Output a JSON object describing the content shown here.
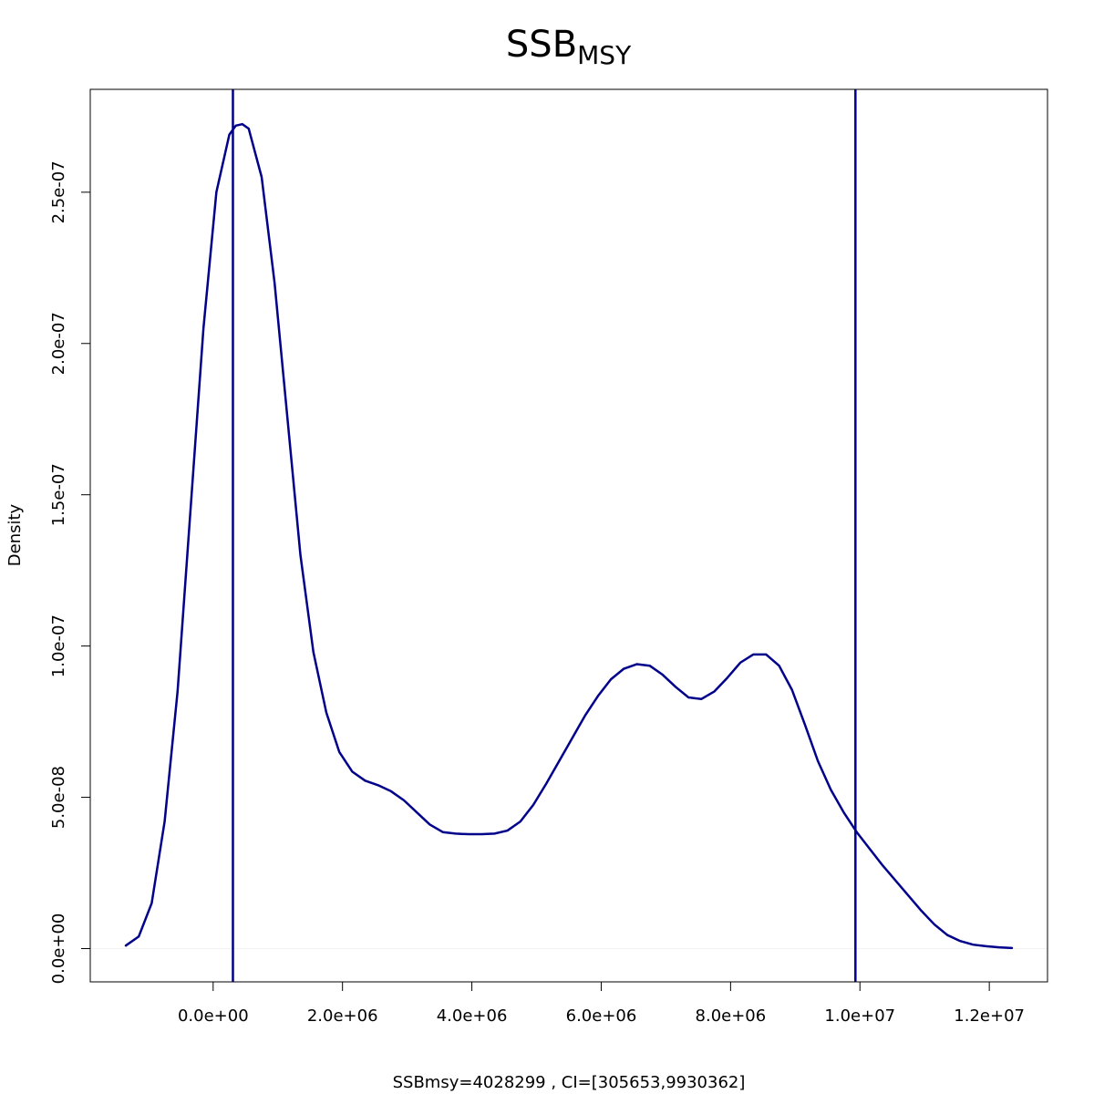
{
  "chart_data": {
    "type": "line",
    "title": "SSB",
    "title_subscript": "MSY",
    "xlabel": "SSBmsy=4028299 , CI=[305653,9930362]",
    "ylabel": "Density",
    "xlim": [
      -1900000,
      12900000
    ],
    "ylim": [
      -1.1e-08,
      2.84e-07
    ],
    "x_ticks": [
      {
        "value": 0,
        "label": "0.0e+00"
      },
      {
        "value": 2000000,
        "label": "2.0e+06"
      },
      {
        "value": 4000000,
        "label": "4.0e+06"
      },
      {
        "value": 6000000,
        "label": "6.0e+06"
      },
      {
        "value": 8000000,
        "label": "8.0e+06"
      },
      {
        "value": 10000000,
        "label": "1.0e+07"
      },
      {
        "value": 12000000,
        "label": "1.2e+07"
      }
    ],
    "y_ticks": [
      {
        "value": 0,
        "label": "0.0e+00"
      },
      {
        "value": 5e-08,
        "label": "5.0e-08"
      },
      {
        "value": 1e-07,
        "label": "1.0e-07"
      },
      {
        "value": 1.5e-07,
        "label": "1.5e-07"
      },
      {
        "value": 2e-07,
        "label": "2.0e-07"
      },
      {
        "value": 2.5e-07,
        "label": "2.5e-07"
      }
    ],
    "series": [
      {
        "name": "density",
        "color": "#00008B",
        "points": [
          [
            -1350000,
            1e-09
          ],
          [
            -1150000,
            4e-09
          ],
          [
            -950000,
            1.5e-08
          ],
          [
            -750000,
            4.2e-08
          ],
          [
            -550000,
            8.5e-08
          ],
          [
            -350000,
            1.45e-07
          ],
          [
            -150000,
            2.05e-07
          ],
          [
            50000,
            2.5e-07
          ],
          [
            250000,
            2.69e-07
          ],
          [
            350000,
            2.72e-07
          ],
          [
            450000,
            2.725e-07
          ],
          [
            550000,
            2.71e-07
          ],
          [
            750000,
            2.55e-07
          ],
          [
            950000,
            2.2e-07
          ],
          [
            1150000,
            1.75e-07
          ],
          [
            1350000,
            1.3e-07
          ],
          [
            1550000,
            9.8e-08
          ],
          [
            1750000,
            7.8e-08
          ],
          [
            1950000,
            6.5e-08
          ],
          [
            2150000,
            5.85e-08
          ],
          [
            2350000,
            5.55e-08
          ],
          [
            2550000,
            5.4e-08
          ],
          [
            2750000,
            5.2e-08
          ],
          [
            2950000,
            4.9e-08
          ],
          [
            3150000,
            4.5e-08
          ],
          [
            3350000,
            4.1e-08
          ],
          [
            3550000,
            3.85e-08
          ],
          [
            3750000,
            3.8e-08
          ],
          [
            3950000,
            3.78e-08
          ],
          [
            4150000,
            3.78e-08
          ],
          [
            4350000,
            3.8e-08
          ],
          [
            4550000,
            3.9e-08
          ],
          [
            4750000,
            4.2e-08
          ],
          [
            4950000,
            4.75e-08
          ],
          [
            5150000,
            5.45e-08
          ],
          [
            5350000,
            6.2e-08
          ],
          [
            5550000,
            6.95e-08
          ],
          [
            5750000,
            7.7e-08
          ],
          [
            5950000,
            8.35e-08
          ],
          [
            6150000,
            8.9e-08
          ],
          [
            6350000,
            9.25e-08
          ],
          [
            6550000,
            9.4e-08
          ],
          [
            6750000,
            9.35e-08
          ],
          [
            6950000,
            9.05e-08
          ],
          [
            7150000,
            8.65e-08
          ],
          [
            7350000,
            8.3e-08
          ],
          [
            7550000,
            8.25e-08
          ],
          [
            7750000,
            8.5e-08
          ],
          [
            7950000,
            8.95e-08
          ],
          [
            8150000,
            9.45e-08
          ],
          [
            8350000,
            9.72e-08
          ],
          [
            8550000,
            9.72e-08
          ],
          [
            8750000,
            9.35e-08
          ],
          [
            8950000,
            8.55e-08
          ],
          [
            9150000,
            7.4e-08
          ],
          [
            9350000,
            6.2e-08
          ],
          [
            9550000,
            5.25e-08
          ],
          [
            9750000,
            4.5e-08
          ],
          [
            9950000,
            3.85e-08
          ],
          [
            10150000,
            3.3e-08
          ],
          [
            10350000,
            2.75e-08
          ],
          [
            10550000,
            2.25e-08
          ],
          [
            10750000,
            1.75e-08
          ],
          [
            10950000,
            1.25e-08
          ],
          [
            11150000,
            8e-09
          ],
          [
            11350000,
            4.5e-09
          ],
          [
            11550000,
            2.5e-09
          ],
          [
            11750000,
            1.3e-09
          ],
          [
            11950000,
            8e-10
          ],
          [
            12150000,
            4e-10
          ],
          [
            12350000,
            2e-10
          ]
        ]
      }
    ],
    "vlines": [
      {
        "name": "ci-lower",
        "value": 305653,
        "color": "#00008B"
      },
      {
        "name": "ci-upper",
        "value": 9930362,
        "color": "#00008B"
      }
    ],
    "hline": {
      "value": 0,
      "color": "#F2F2F2"
    }
  }
}
